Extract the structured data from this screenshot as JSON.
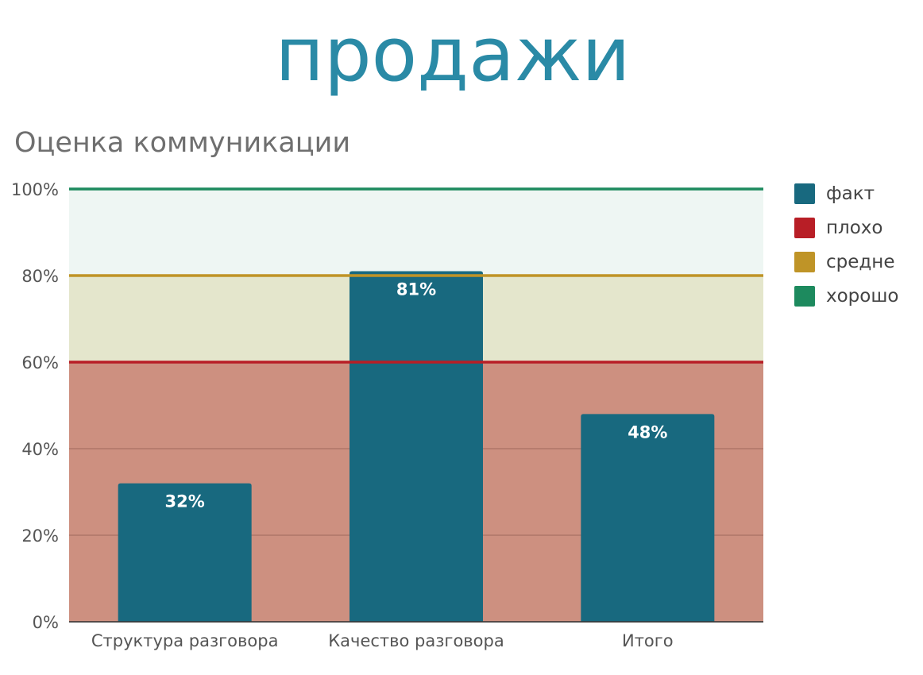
{
  "page_title": "продажи",
  "chart_data": {
    "type": "bar",
    "title": "Оценка коммуникации",
    "categories": [
      "Структура разговора",
      "Качество разговора",
      "Итого"
    ],
    "series": [
      {
        "name": "факт",
        "color": "#18697f",
        "values": [
          32,
          81,
          48
        ],
        "data_labels": [
          "32%",
          "81%",
          "48%"
        ]
      }
    ],
    "thresholds": [
      {
        "name": "плохо",
        "color": "#b81e26",
        "value": 60
      },
      {
        "name": "средне",
        "color": "#bf9427",
        "value": 80
      },
      {
        "name": "хорошо",
        "color": "#1d8a5e",
        "value": 100
      }
    ],
    "bands": [
      {
        "from": 0,
        "to": 60,
        "color": "#cd9080"
      },
      {
        "from": 60,
        "to": 80,
        "color": "#e4e6cc"
      },
      {
        "from": 80,
        "to": 100,
        "color": "#eef6f3"
      }
    ],
    "yticks": [
      "0%",
      "20%",
      "40%",
      "60%",
      "80%",
      "100%"
    ],
    "ylim": [
      0,
      100
    ],
    "xlabel": "",
    "ylabel": "",
    "legend_position": "right",
    "legend": [
      {
        "name": "факт",
        "color": "#18697f"
      },
      {
        "name": "плохо",
        "color": "#b81e26"
      },
      {
        "name": "средне",
        "color": "#bf9427"
      },
      {
        "name": "хорошо",
        "color": "#1d8a5e"
      }
    ]
  }
}
